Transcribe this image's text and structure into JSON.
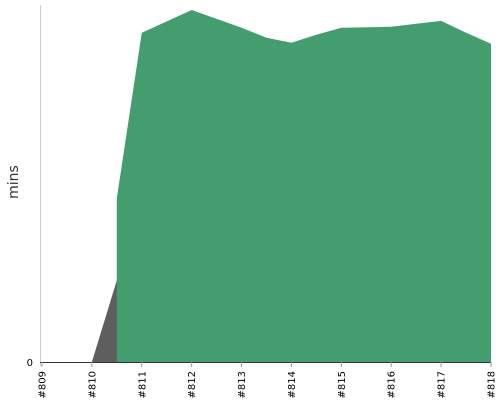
{
  "chart_data": {
    "type": "area",
    "title": "",
    "xlabel": "",
    "ylabel": "mins",
    "categories": [
      "#809",
      "#810",
      "#811",
      "#812",
      "#813",
      "#814",
      "#815",
      "#816",
      "#817",
      "#818"
    ],
    "y_ticks": [
      "0"
    ],
    "ylim": [
      0,
      36
    ],
    "grid": false,
    "legend": "none",
    "series": [
      {
        "color": "#5e5e5e",
        "values": [
          0,
          0,
          16.5,
          null,
          null,
          null,
          null,
          null,
          null,
          null
        ]
      },
      {
        "color": "#449d6e",
        "points": [
          {
            "x": 1.5,
            "y": 0
          },
          {
            "x": 1.5,
            "y": 16.5
          },
          {
            "x": 2,
            "y": 33.2
          },
          {
            "x": 3,
            "y": 35.5
          },
          {
            "x": 3.5,
            "y": 34.6
          },
          {
            "x": 4,
            "y": 33.7
          },
          {
            "x": 4.5,
            "y": 32.7
          },
          {
            "x": 5,
            "y": 32.2
          },
          {
            "x": 5.5,
            "y": 33.0
          },
          {
            "x": 6,
            "y": 33.7
          },
          {
            "x": 7,
            "y": 33.8
          },
          {
            "x": 7.5,
            "y": 34.1
          },
          {
            "x": 8,
            "y": 34.4
          },
          {
            "x": 8.5,
            "y": 33.2
          },
          {
            "x": 9,
            "y": 32.1
          },
          {
            "x": 9,
            "y": 0
          }
        ]
      }
    ]
  }
}
